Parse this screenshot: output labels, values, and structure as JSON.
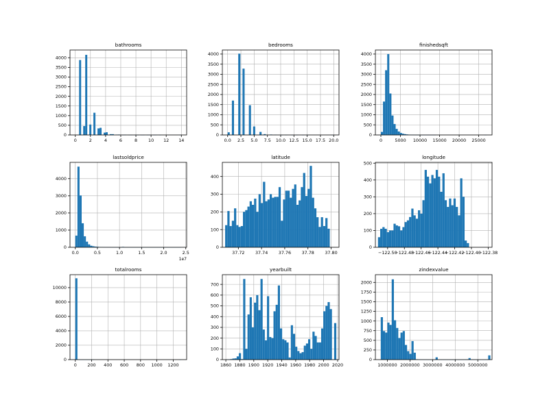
{
  "chart_data": [
    {
      "type": "bar",
      "title": "bathrooms",
      "xlim": [
        -0.7,
        14.7
      ],
      "ylim": [
        0,
        4400
      ],
      "xticks": [
        0,
        2,
        4,
        6,
        8,
        10,
        12,
        14
      ],
      "yticks": [
        0,
        500,
        1000,
        1500,
        2000,
        2500,
        3000,
        3500,
        4000
      ],
      "bin_start": 0.5,
      "bin_width": 0.27,
      "bar_color": "#1f77b4",
      "values": [
        3880,
        0,
        460,
        4150,
        0,
        540,
        0,
        1150,
        0,
        340,
        370,
        0,
        120,
        140,
        0,
        40,
        40,
        0,
        15,
        20,
        0,
        5,
        8,
        0,
        3,
        5,
        0,
        2,
        3,
        0,
        1,
        2,
        0,
        1,
        1,
        0,
        1,
        1,
        0,
        1,
        0,
        0,
        0,
        0,
        0,
        0,
        0,
        0,
        0,
        1
      ]
    },
    {
      "type": "bar",
      "title": "bedrooms",
      "xlim": [
        -1,
        21
      ],
      "ylim": [
        0,
        4200
      ],
      "xticks": [
        0.0,
        2.5,
        5.0,
        7.5,
        10.0,
        12.5,
        15.0,
        17.5,
        20.0
      ],
      "tick_decimals": 1,
      "yticks": [
        0,
        500,
        1000,
        1500,
        2000,
        2500,
        3000,
        3500,
        4000
      ],
      "bin_start": 0,
      "bin_width": 0.4,
      "bar_color": "#1f77b4",
      "values": [
        130,
        0,
        1700,
        0,
        0,
        4020,
        0,
        3280,
        0,
        0,
        1470,
        0,
        420,
        0,
        0,
        150,
        0,
        40,
        0,
        0,
        20,
        0,
        10,
        0,
        0,
        5,
        0,
        3,
        0,
        0,
        2,
        0,
        1,
        0,
        0,
        1,
        0,
        1,
        0,
        0,
        0,
        0,
        0,
        0,
        0,
        0,
        0,
        0,
        0,
        1
      ]
    },
    {
      "type": "bar",
      "title": "finishedsqft",
      "xlim": [
        -1400,
        28400
      ],
      "ylim": [
        0,
        4200
      ],
      "xticks": [
        0,
        5000,
        10000,
        15000,
        20000,
        25000
      ],
      "yticks": [
        0,
        500,
        1000,
        1500,
        2000,
        2500,
        3000,
        3500,
        4000
      ],
      "bin_start": 0,
      "bin_width": 540,
      "bar_color": "#1f77b4",
      "values": [
        150,
        1650,
        3200,
        4000,
        2050,
        960,
        540,
        300,
        170,
        100,
        60,
        40,
        25,
        15,
        10,
        8,
        5,
        4,
        3,
        2,
        2,
        1,
        1,
        1,
        1,
        1,
        0,
        0,
        0,
        0,
        0,
        0,
        0,
        0,
        0,
        0,
        0,
        0,
        0,
        0,
        0,
        0,
        0,
        0,
        0,
        0,
        0,
        0,
        0,
        1
      ]
    },
    {
      "type": "bar",
      "title": "lastsoldprice",
      "xlim": [
        -0.12,
        2.52
      ],
      "ylim": [
        0,
        4950
      ],
      "offset_label": "1e7",
      "xticks": [
        0.0,
        0.5,
        1.0,
        1.5,
        2.0,
        2.5
      ],
      "tick_decimals": 1,
      "yticks": [
        0,
        1000,
        2000,
        3000,
        4000
      ],
      "bin_start": 0,
      "bin_width": 0.048,
      "bar_color": "#1f77b4",
      "values": [
        680,
        4700,
        3020,
        1400,
        640,
        330,
        170,
        90,
        60,
        40,
        30,
        20,
        15,
        10,
        8,
        6,
        5,
        4,
        3,
        3,
        2,
        2,
        25,
        2,
        2,
        1,
        1,
        1,
        1,
        1,
        1,
        1,
        1,
        1,
        1,
        1,
        1,
        1,
        1,
        1,
        1,
        1,
        1,
        1,
        1,
        1,
        1,
        1,
        1,
        1
      ]
    },
    {
      "type": "bar",
      "title": "latitude",
      "xlim": [
        37.7062,
        37.8068
      ],
      "ylim": [
        0,
        480
      ],
      "xticks": [
        37.72,
        37.74,
        37.76,
        37.78,
        37.8
      ],
      "tick_decimals": 2,
      "yticks": [
        0,
        100,
        200,
        300,
        400
      ],
      "bin_start": 37.7086,
      "bin_width": 0.00192,
      "bar_color": "#1f77b4",
      "values": [
        125,
        205,
        120,
        150,
        220,
        125,
        115,
        120,
        200,
        210,
        230,
        260,
        240,
        275,
        200,
        300,
        250,
        370,
        260,
        270,
        300,
        280,
        285,
        285,
        340,
        150,
        270,
        320,
        320,
        280,
        330,
        355,
        240,
        265,
        340,
        420,
        290,
        330,
        460,
        280,
        220,
        170,
        115,
        170,
        120,
        165,
        105,
        0,
        0,
        0
      ]
    },
    {
      "type": "bar",
      "title": "longitude",
      "xlim": [
        -122.5146,
        -122.3754
      ],
      "ylim": [
        0,
        505
      ],
      "xticks": [
        -122.5,
        -122.48,
        -122.46,
        -122.44,
        -122.42,
        -122.4,
        -122.38
      ],
      "tick_decimals": 2,
      "yticks": [
        0,
        100,
        200,
        300,
        400,
        500
      ],
      "bin_start": -122.5115,
      "bin_width": 0.00265,
      "bar_color": "#1f77b4",
      "values": [
        60,
        110,
        120,
        110,
        90,
        100,
        100,
        140,
        130,
        125,
        100,
        120,
        150,
        160,
        180,
        230,
        190,
        170,
        220,
        200,
        280,
        460,
        420,
        380,
        430,
        410,
        460,
        420,
        330,
        440,
        280,
        240,
        290,
        250,
        290,
        240,
        190,
        410,
        300,
        40,
        25,
        0,
        0,
        0,
        0,
        0,
        0,
        0,
        0,
        0
      ]
    },
    {
      "type": "bar",
      "title": "totalrooms",
      "xlim": [
        -65,
        1365
      ],
      "ylim": [
        0,
        11800
      ],
      "xticks": [
        0,
        200,
        400,
        600,
        800,
        1000,
        1200
      ],
      "yticks": [
        0,
        2000,
        4000,
        6000,
        8000,
        10000
      ],
      "bin_start": 0,
      "bin_width": 26,
      "bar_color": "#1f77b4",
      "values": [
        11300,
        20,
        3,
        2,
        1,
        1,
        1,
        1,
        1,
        0,
        0,
        0,
        0,
        0,
        0,
        0,
        0,
        0,
        0,
        0,
        0,
        0,
        0,
        0,
        0,
        0,
        0,
        0,
        0,
        0,
        0,
        0,
        0,
        0,
        0,
        0,
        0,
        0,
        0,
        0,
        0,
        0,
        0,
        0,
        0,
        0,
        0,
        0,
        0,
        1
      ]
    },
    {
      "type": "bar",
      "title": "yearbuilt",
      "xlim": [
        1855,
        2022
      ],
      "ylim": [
        0,
        790
      ],
      "xticks": [
        1860,
        1880,
        1900,
        1920,
        1940,
        1960,
        1980,
        2000,
        2020
      ],
      "yticks": [
        0,
        100,
        200,
        300,
        400,
        500,
        600,
        700
      ],
      "bin_start": 1860,
      "bin_width": 3.1,
      "bar_color": "#1f77b4",
      "values": [
        2,
        3,
        5,
        10,
        12,
        30,
        60,
        5,
        750,
        100,
        420,
        580,
        300,
        530,
        600,
        460,
        750,
        280,
        180,
        590,
        210,
        200,
        450,
        510,
        690,
        290,
        190,
        180,
        160,
        20,
        320,
        240,
        120,
        80,
        60,
        70,
        130,
        150,
        190,
        100,
        260,
        220,
        160,
        160,
        290,
        450,
        500,
        535,
        470,
        0,
        340
      ]
    },
    {
      "type": "bar",
      "title": "zindexvalue",
      "xlim": [
        470000,
        5630000
      ],
      "ylim": [
        0,
        2200
      ],
      "xticks": [
        1000000,
        2000000,
        3000000,
        4000000,
        5000000
      ],
      "yticks": [
        0,
        250,
        500,
        750,
        1000,
        1250,
        1500,
        1750,
        2000
      ],
      "bin_start": 707000,
      "bin_width": 97000,
      "bar_color": "#1f77b4",
      "values": [
        1100,
        740,
        700,
        960,
        900,
        2080,
        1020,
        820,
        560,
        700,
        740,
        380,
        220,
        150,
        480,
        180,
        10,
        5,
        3,
        2,
        2,
        1,
        1,
        1,
        1,
        60,
        2,
        1,
        1,
        1,
        1,
        1,
        1,
        1,
        1,
        1,
        1,
        1,
        1,
        1,
        40,
        1,
        1,
        1,
        1,
        1,
        1,
        1,
        1,
        110
      ]
    }
  ]
}
